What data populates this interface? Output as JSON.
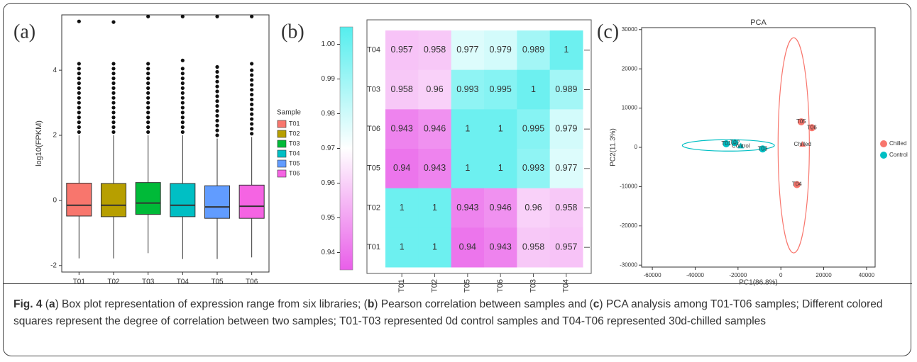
{
  "chart_data": [
    {
      "type": "box",
      "panel": "(a)",
      "y_label": "log10(FPKM)",
      "legend_title": "Sample",
      "categories": [
        "T01",
        "T02",
        "T03",
        "T04",
        "T05",
        "T06"
      ],
      "colors": [
        "#f8766d",
        "#b79f00",
        "#00ba38",
        "#00bfc4",
        "#619cff",
        "#f564e3"
      ],
      "boxes": [
        {
          "low": -1.78,
          "q1": -0.48,
          "median": -0.15,
          "q3": 0.53,
          "high": 2.0,
          "outliers": [
            2.1,
            2.25,
            2.4,
            2.55,
            2.7,
            2.85,
            3.0,
            3.15,
            3.3,
            3.45,
            3.6,
            3.75,
            3.9,
            4.05,
            4.2,
            5.5
          ]
        },
        {
          "low": -1.78,
          "q1": -0.5,
          "median": -0.15,
          "q3": 0.52,
          "high": 2.0,
          "outliers": [
            2.1,
            2.25,
            2.4,
            2.55,
            2.7,
            2.85,
            3.0,
            3.15,
            3.3,
            3.45,
            3.6,
            3.75,
            3.9,
            4.05,
            4.2,
            5.48
          ]
        },
        {
          "low": -1.62,
          "q1": -0.43,
          "median": -0.08,
          "q3": 0.55,
          "high": 2.0,
          "outliers": [
            2.1,
            2.25,
            2.4,
            2.55,
            2.7,
            2.85,
            3.0,
            3.15,
            3.3,
            3.45,
            3.6,
            3.75,
            3.9,
            4.05,
            4.2,
            5.65
          ]
        },
        {
          "low": -1.8,
          "q1": -0.5,
          "median": -0.15,
          "q3": 0.52,
          "high": 2.0,
          "outliers": [
            2.1,
            2.25,
            2.4,
            2.55,
            2.7,
            2.85,
            3.0,
            3.15,
            3.3,
            3.45,
            3.6,
            3.75,
            3.9,
            4.05,
            4.3,
            5.65
          ]
        },
        {
          "low": -1.8,
          "q1": -0.55,
          "median": -0.2,
          "q3": 0.45,
          "high": 1.9,
          "outliers": [
            2.0,
            2.15,
            2.3,
            2.45,
            2.6,
            2.75,
            2.9,
            3.05,
            3.2,
            3.35,
            3.5,
            3.65,
            3.8,
            3.95,
            4.1,
            5.65
          ]
        },
        {
          "low": -1.75,
          "q1": -0.55,
          "median": -0.18,
          "q3": 0.47,
          "high": 1.95,
          "outliers": [
            2.05,
            2.2,
            2.35,
            2.5,
            2.65,
            2.8,
            2.95,
            3.1,
            3.25,
            3.4,
            3.55,
            3.7,
            3.85,
            4.0,
            4.2,
            5.65
          ]
        }
      ],
      "ylim": [
        -2.2,
        5.7
      ],
      "yticks": [
        -2,
        0,
        2,
        4
      ]
    },
    {
      "type": "heatmap",
      "panel": "(b)",
      "rows": [
        "T04",
        "T03",
        "T06",
        "T05",
        "T02",
        "T01"
      ],
      "cols": [
        "T01",
        "T02",
        "T05",
        "T06",
        "T03",
        "T04"
      ],
      "values": [
        [
          0.957,
          0.958,
          0.977,
          0.979,
          0.989,
          1
        ],
        [
          0.958,
          0.96,
          0.993,
          0.995,
          1,
          0.989
        ],
        [
          0.943,
          0.946,
          1,
          1,
          0.995,
          0.979
        ],
        [
          0.94,
          0.943,
          1,
          1,
          0.993,
          0.977
        ],
        [
          1,
          1,
          0.943,
          0.946,
          0.96,
          0.958
        ],
        [
          1,
          1,
          0.94,
          0.943,
          0.958,
          0.957
        ]
      ],
      "colorscale": [
        "#e95ee9",
        "#ffffff",
        "#55eeee"
      ],
      "colorbar_lim": [
        0.935,
        1.005
      ],
      "colorbar_ticks": [
        0.94,
        0.95,
        0.96,
        0.97,
        0.98,
        0.99,
        {
          "value": 1,
          "label": "1.00"
        }
      ]
    },
    {
      "type": "scatter",
      "panel": "(c)",
      "title": "PCA",
      "x_label": "PC1(86.8%)",
      "y_label": "PC2(11.3%)",
      "series": [
        {
          "name": "Chilled",
          "color": "#f8766d",
          "x": [
            7500,
            9500,
            14500
          ],
          "y": [
            -9500,
            6500,
            5000
          ],
          "labels": [
            "T04",
            "T05",
            "T06"
          ],
          "centroid": [
            10100,
            700
          ],
          "ellipse": {
            "cx": 6000,
            "cy": 500,
            "rx": 7300,
            "ry": 27400
          }
        },
        {
          "name": "Control",
          "color": "#00bfc4",
          "x": [
            -25500,
            -21500,
            -8500
          ],
          "y": [
            900,
            1200,
            -400
          ],
          "labels": [
            "T01",
            "T02",
            "T03"
          ],
          "centroid": [
            -18700,
            300
          ],
          "ellipse": {
            "cx": -24500,
            "cy": 500,
            "rx": 21500,
            "ry": 1450
          }
        }
      ],
      "xlim": [
        -65000,
        44000
      ],
      "ylim": [
        -30500,
        30500
      ],
      "xticks": [
        -60000,
        -40000,
        -20000,
        0,
        20000,
        40000
      ],
      "yticks": [
        -30000,
        -20000,
        -10000,
        0,
        10000,
        20000,
        30000
      ]
    }
  ],
  "caption": [
    {
      "text": "Fig. 4",
      "bold": true
    },
    {
      "text": " ("
    },
    {
      "text": "a",
      "bold": true
    },
    {
      "text": ") Box plot representation of expression range from six libraries; ("
    },
    {
      "text": "b",
      "bold": true
    },
    {
      "text": ") Pearson correlation between samples and ("
    },
    {
      "text": "c",
      "bold": true
    },
    {
      "text": ") PCA analysis among T01-T06 samples; Different colored squares represent the degree of correlation between two samples; T01-T03 represented 0d control samples and T04-T06 represented 30d-chilled samples"
    }
  ]
}
